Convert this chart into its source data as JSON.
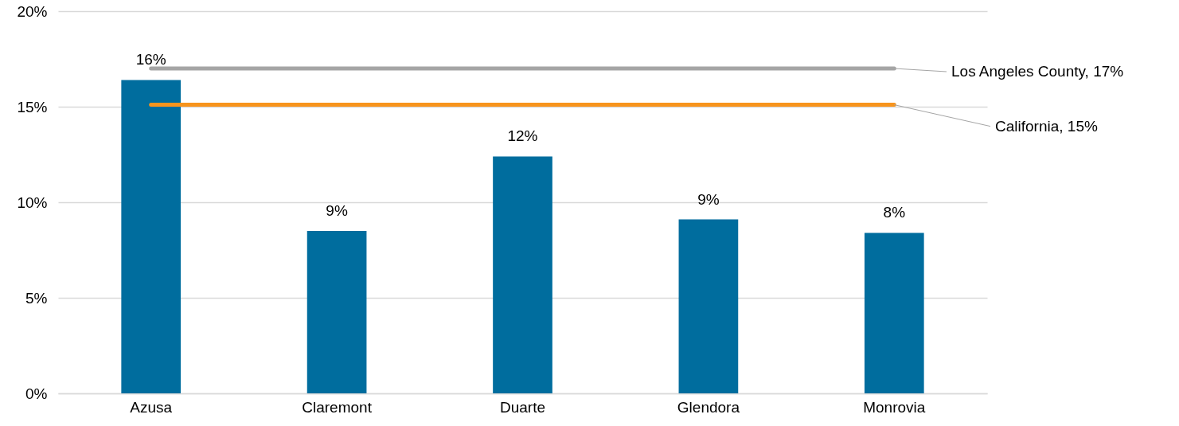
{
  "chart_data": {
    "type": "bar",
    "categories": [
      "Azusa",
      "Claremont",
      "Duarte",
      "Glendora",
      "Monrovia"
    ],
    "values": [
      16.4,
      8.5,
      12.4,
      9.1,
      8.4
    ],
    "value_labels": [
      "16%",
      "9%",
      "12%",
      "9%",
      "8%"
    ],
    "color": "#006d9e",
    "ylim": [
      0,
      20
    ],
    "yticks": [
      {
        "value": 0,
        "label": "0%"
      },
      {
        "value": 5,
        "label": "5%"
      },
      {
        "value": 10,
        "label": "10%"
      },
      {
        "value": 15,
        "label": "15%"
      },
      {
        "value": 20,
        "label": "20%"
      }
    ],
    "grid": "y",
    "ref_lines": [
      {
        "axis": "y",
        "value": 17,
        "label": "Los Angeles County, 17%",
        "color": "#a5a5a5"
      },
      {
        "axis": "y",
        "value": 15.1,
        "label": "California, 15%",
        "color": "#f7941d"
      }
    ]
  }
}
